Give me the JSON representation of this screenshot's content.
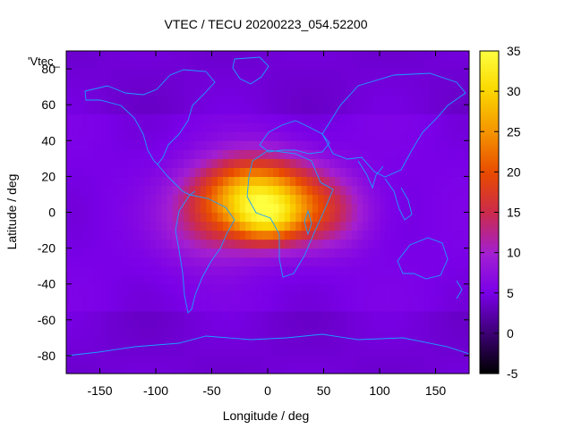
{
  "chart_data": {
    "type": "heatmap",
    "title": "VTEC / TECU 20200223_054.52200",
    "xlabel": "Longitude / deg",
    "ylabel": "Latitude / deg",
    "key_label": "'Vtec_",
    "xlim": [
      -180,
      180
    ],
    "ylim": [
      -90,
      90
    ],
    "xticks": [
      -150,
      -100,
      -50,
      0,
      50,
      100,
      150
    ],
    "yticks": [
      -80,
      -60,
      -40,
      -20,
      0,
      20,
      40,
      60,
      80
    ],
    "colorbar": {
      "range": [
        -5,
        35
      ],
      "ticks": [
        -5,
        0,
        5,
        10,
        15,
        20,
        25,
        30,
        35
      ],
      "palette": [
        "#000000",
        "#3a0070",
        "#7a00e8",
        "#a21fd2",
        "#cc2b4a",
        "#e84a00",
        "#f59500",
        "#fad800",
        "#ffff40"
      ]
    },
    "background_level": 5,
    "field_peaks": [
      {
        "lon": -10,
        "lat": 12,
        "amplitude": 22,
        "sigma_lon": 35,
        "sigma_lat": 14
      },
      {
        "lon": 0,
        "lat": -5,
        "amplitude": 14,
        "sigma_lon": 22,
        "sigma_lat": 10
      },
      {
        "lon": -50,
        "lat": -5,
        "amplitude": 8,
        "sigma_lon": 30,
        "sigma_lat": 16
      },
      {
        "lon": 50,
        "lat": 0,
        "amplitude": 9,
        "sigma_lon": 28,
        "sigma_lat": 14
      }
    ],
    "annotations": {
      "max_value_tecu": 33,
      "max_location": "near lon -10, lat 15 (West Africa)"
    }
  }
}
